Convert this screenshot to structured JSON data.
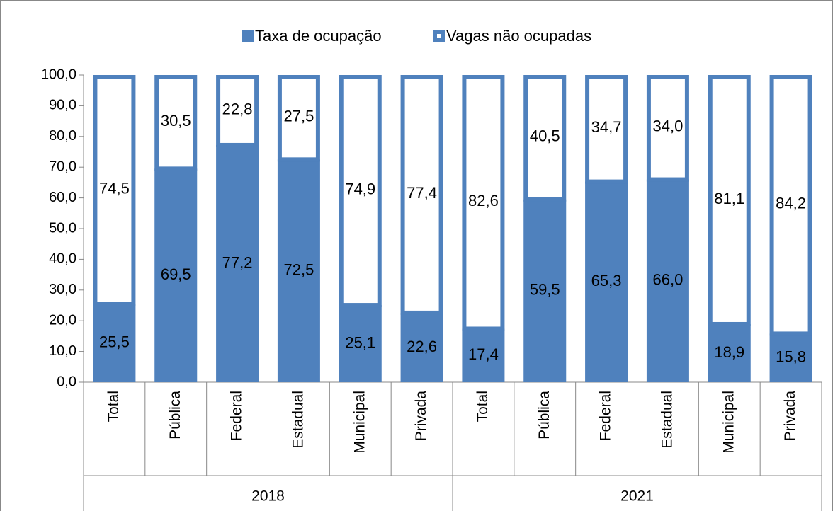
{
  "chart_data": {
    "type": "stacked_bar",
    "categories": [
      "Total",
      "Pública",
      "Federal",
      "Estadual",
      "Municipal",
      "Privada",
      "Total",
      "Pública",
      "Federal",
      "Estadual",
      "Municipal",
      "Privada"
    ],
    "groups": [
      "2018",
      "2021"
    ],
    "series": [
      {
        "name": "Taxa de ocupação",
        "color": "#4f81bd",
        "values": [
          25.5,
          69.5,
          77.2,
          72.5,
          25.1,
          22.6,
          17.4,
          59.5,
          65.3,
          66.0,
          18.9,
          15.8
        ],
        "value_labels": [
          "25,5",
          "69,5",
          "77,2",
          "72,5",
          "25,1",
          "22,6",
          "17,4",
          "59,5",
          "65,3",
          "66,0",
          "18,9",
          "15,8"
        ]
      },
      {
        "name": "Vagas não ocupadas",
        "color": "#ffffff",
        "values": [
          74.5,
          30.5,
          22.8,
          27.5,
          74.9,
          77.4,
          82.6,
          40.5,
          34.7,
          34.0,
          81.1,
          84.2
        ],
        "value_labels": [
          "74,5",
          "30,5",
          "22,8",
          "27,5",
          "74,9",
          "77,4",
          "82,6",
          "40,5",
          "34,7",
          "34,0",
          "81,1",
          "84,2"
        ]
      }
    ],
    "ylim": [
      0,
      100
    ],
    "yticks": [
      {
        "value": 0,
        "label": "0,0"
      },
      {
        "value": 10,
        "label": "10,0"
      },
      {
        "value": 20,
        "label": "20,0"
      },
      {
        "value": 30,
        "label": "30,0"
      },
      {
        "value": 40,
        "label": "40,0"
      },
      {
        "value": 50,
        "label": "50,0"
      },
      {
        "value": 60,
        "label": "60,0"
      },
      {
        "value": 70,
        "label": "70,0"
      },
      {
        "value": 80,
        "label": "80,0"
      },
      {
        "value": 90,
        "label": "90,0"
      },
      {
        "value": 100,
        "label": "100,0"
      }
    ],
    "legend": "top"
  }
}
